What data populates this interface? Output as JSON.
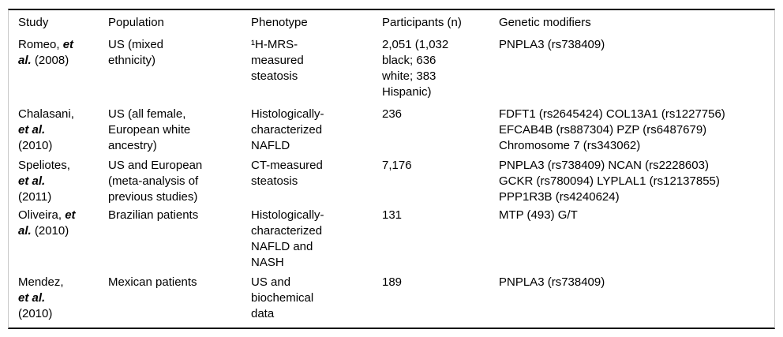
{
  "colors": {
    "text": "#000000",
    "horizontal_rule": "#000000",
    "side_frame": "#c9c9c9",
    "background": "#ffffff"
  },
  "table": {
    "headers": [
      "Study",
      "Population",
      "Phenotype",
      "Participants (n)",
      "Genetic modifiers"
    ],
    "rows": [
      {
        "study": [
          {
            "t": "Romeo, "
          },
          {
            "t": "et\nal.",
            "etal": true
          },
          {
            "t": " (2008)"
          }
        ],
        "population": "US (mixed\nethnicity)",
        "phenotype": "¹H-MRS-\nmeasured\nsteatosis",
        "participants": "2,051 (1,032\nblack; 636\nwhite; 383\nHispanic)",
        "genetic_modifiers": "PNPLA3 (rs738409)"
      },
      {
        "study": [
          {
            "t": "Chalasani,\n"
          },
          {
            "t": "et al.",
            "etal": true
          },
          {
            "t": "\n(2010)"
          }
        ],
        "population": "US (all female,\nEuropean white\nancestry)",
        "phenotype": "Histologically-\ncharacterized\nNAFLD",
        "participants": "236",
        "genetic_modifiers": "FDFT1 (rs2645424) COL13A1 (rs1227756)\nEFCAB4B (rs887304) PZP (rs6487679)\nChromosome 7 (rs343062)"
      },
      {
        "study": [
          {
            "t": "Speliotes,\n"
          },
          {
            "t": "et al.",
            "etal": true
          },
          {
            "t": "\n(2011)"
          }
        ],
        "population": "US and European\n(meta-analysis of\nprevious studies)",
        "phenotype": "CT-measured\nsteatosis",
        "participants": "7,176",
        "genetic_modifiers": "PNPLA3 (rs738409) NCAN (rs2228603)\nGCKR (rs780094) LYPLAL1 (rs12137855)\nPPP1R3B (rs4240624)"
      },
      {
        "study": [
          {
            "t": "Oliveira, "
          },
          {
            "t": "et\nal.",
            "etal": true
          },
          {
            "t": " (2010)"
          }
        ],
        "population": "Brazilian patients",
        "phenotype": "Histologically-\ncharacterized\nNAFLD and\nNASH",
        "participants": "131",
        "genetic_modifiers": "MTP (493) G/T"
      },
      {
        "study": [
          {
            "t": "Mendez,\n"
          },
          {
            "t": "et al.",
            "etal": true
          },
          {
            "t": "\n(2010)"
          }
        ],
        "population": "Mexican patients",
        "phenotype": "US and\nbiochemical\ndata",
        "participants": "189",
        "genetic_modifiers": "PNPLA3 (rs738409)"
      }
    ]
  }
}
